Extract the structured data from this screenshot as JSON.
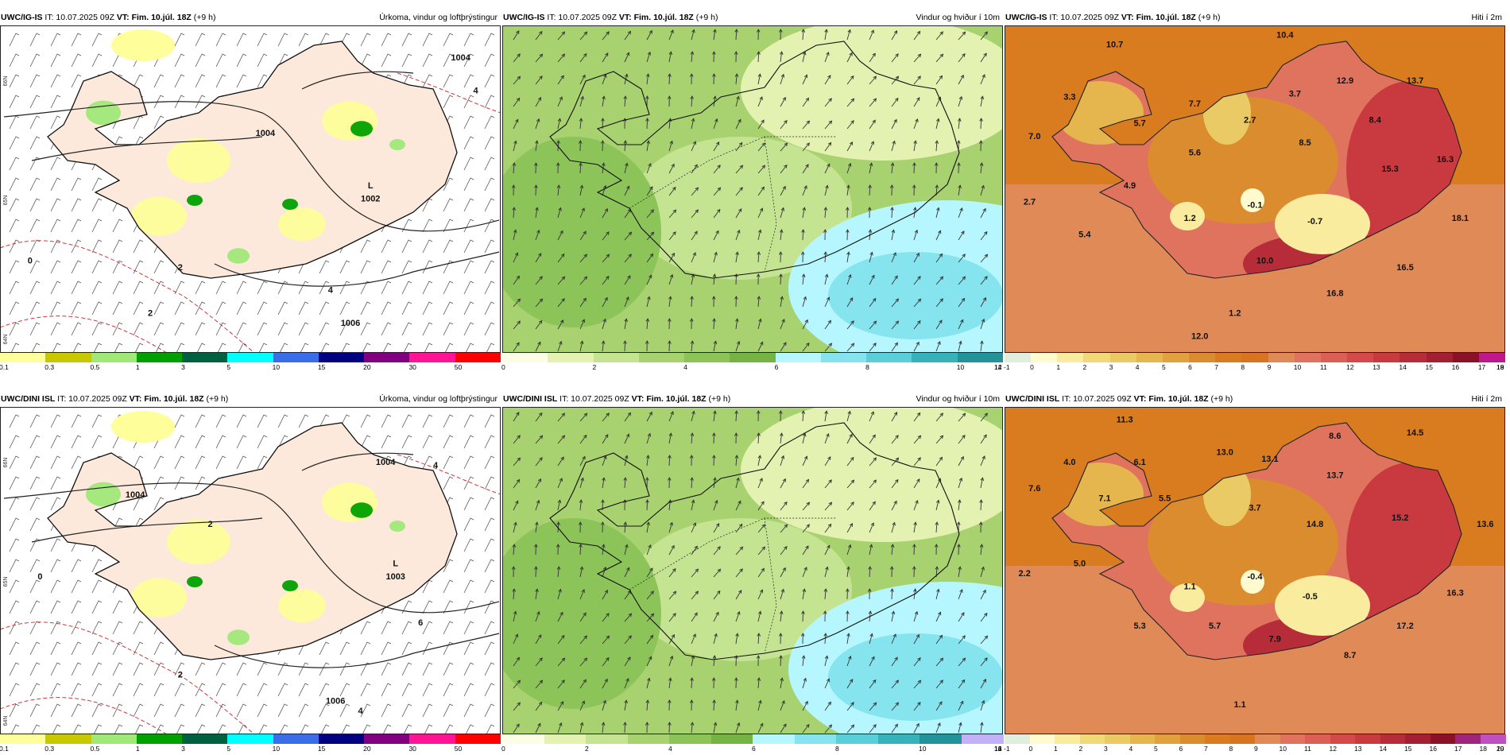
{
  "rows": [
    {
      "name": "ig-is",
      "panels": [
        {
          "kind": "precip",
          "model": "UWC/IG-IS",
          "it": " IT: 10.07.2025 09Z ",
          "vt_label": "VT: Fim. 10.júl. 18Z",
          "offset": " (+9 h)",
          "title": "Úrkoma, vindur og loftþrýstingur",
          "lat_labels": [
            "66N",
            "65N",
            "64N"
          ],
          "values": [
            {
              "text": "1004",
              "x": 0.92,
              "y": 0.1
            },
            {
              "text": "1004",
              "x": 0.53,
              "y": 0.33
            },
            {
              "text": "L",
              "x": 0.74,
              "y": 0.49
            },
            {
              "text": "1002",
              "x": 0.74,
              "y": 0.53
            },
            {
              "text": "1006",
              "x": 0.7,
              "y": 0.91
            },
            {
              "text": "4",
              "x": 0.95,
              "y": 0.2
            },
            {
              "text": "2",
              "x": 0.36,
              "y": 0.74
            },
            {
              "text": "0",
              "x": 0.06,
              "y": 0.72
            },
            {
              "text": "2",
              "x": 0.3,
              "y": 0.88
            },
            {
              "text": "4",
              "x": 0.66,
              "y": 0.81
            }
          ],
          "legend": {
            "colors": [
              "#fefe9a",
              "#c8c800",
              "#a0e878",
              "#00a000",
              "#006040",
              "#00ffff",
              "#3a6ee8",
              "#000080",
              "#800080",
              "#ff1493",
              "#ff0000"
            ],
            "ticks": [
              "0.1",
              "0.3",
              "0.5",
              "1",
              "3",
              "5",
              "10",
              "15",
              "20",
              "30",
              "50"
            ]
          }
        },
        {
          "kind": "wind",
          "model": "UWC/IG-IS",
          "it": " IT: 10.07.2025 09Z ",
          "vt_label": "VT: Fim. 10.júl. 18Z",
          "offset": " (+9 h)",
          "title": "Vindur og hviður í 10m",
          "values": [],
          "legend": {
            "colors": [
              "#fbfde6",
              "#e3f2b0",
              "#c5e491",
              "#a8d16f",
              "#8cc45a",
              "#76b244",
              "#b6f7ff",
              "#86e4ef",
              "#5acfd8",
              "#35b3b8",
              "#219399"
            ],
            "ticks": [
              "0",
              "2",
              "4",
              "6",
              "8",
              "10",
              "12",
              "14"
            ]
          }
        },
        {
          "kind": "temp",
          "model": "UWC/IG-IS",
          "it": " IT: 10.07.2025 09Z ",
          "vt_label": "VT: Fim. 10.júl. 18Z",
          "offset": " (+9 h)",
          "title": "Hiti í 2m",
          "values": [
            {
              "text": "10.4",
              "x": 0.56,
              "y": 0.03
            },
            {
              "text": "10.7",
              "x": 0.22,
              "y": 0.06
            },
            {
              "text": "12.9",
              "x": 0.68,
              "y": 0.17
            },
            {
              "text": "13.7",
              "x": 0.82,
              "y": 0.17
            },
            {
              "text": "3.3",
              "x": 0.13,
              "y": 0.22
            },
            {
              "text": "7.7",
              "x": 0.38,
              "y": 0.24
            },
            {
              "text": "3.7",
              "x": 0.58,
              "y": 0.21
            },
            {
              "text": "5.7",
              "x": 0.27,
              "y": 0.3
            },
            {
              "text": "2.7",
              "x": 0.49,
              "y": 0.29
            },
            {
              "text": "8.4",
              "x": 0.74,
              "y": 0.29
            },
            {
              "text": "7.0",
              "x": 0.06,
              "y": 0.34
            },
            {
              "text": "8.5",
              "x": 0.6,
              "y": 0.36
            },
            {
              "text": "5.6",
              "x": 0.38,
              "y": 0.39
            },
            {
              "text": "16.3",
              "x": 0.88,
              "y": 0.41
            },
            {
              "text": "15.3",
              "x": 0.77,
              "y": 0.44
            },
            {
              "text": "4.9",
              "x": 0.25,
              "y": 0.49
            },
            {
              "text": "2.7",
              "x": 0.05,
              "y": 0.54
            },
            {
              "text": "-0.1",
              "x": 0.5,
              "y": 0.55
            },
            {
              "text": "1.2",
              "x": 0.37,
              "y": 0.59
            },
            {
              "text": "18.1",
              "x": 0.91,
              "y": 0.59
            },
            {
              "text": "-0.7",
              "x": 0.62,
              "y": 0.6
            },
            {
              "text": "5.4",
              "x": 0.16,
              "y": 0.64
            },
            {
              "text": "10.0",
              "x": 0.52,
              "y": 0.72
            },
            {
              "text": "16.5",
              "x": 0.8,
              "y": 0.74
            },
            {
              "text": "16.8",
              "x": 0.66,
              "y": 0.82
            },
            {
              "text": "1.2",
              "x": 0.46,
              "y": 0.88
            },
            {
              "text": "12.0",
              "x": 0.39,
              "y": 0.95
            }
          ],
          "legend": {
            "colors": [
              "#dfeedd",
              "#fffbcf",
              "#f9ec9e",
              "#f1d97a",
              "#eaca64",
              "#e4b64d",
              "#e1a23d",
              "#da8c2f",
              "#d97b1f",
              "#d8741f",
              "#e08a58",
              "#df735e",
              "#dc5f55",
              "#d44a4a",
              "#c83a3f",
              "#b62c38",
              "#a31f32",
              "#8b1127",
              "#c0188c"
            ],
            "ticks": [
              "-1",
              "0",
              "1",
              "2",
              "3",
              "4",
              "5",
              "6",
              "7",
              "8",
              "9",
              "10",
              "11",
              "12",
              "13",
              "14",
              "15",
              "16",
              "17",
              "18",
              "19"
            ]
          }
        }
      ]
    },
    {
      "name": "dini-isl",
      "panels": [
        {
          "kind": "precip",
          "model": "UWC/DINI ISL",
          "it": " IT: 10.07.2025 09Z ",
          "vt_label": "VT: Fim. 10.júl. 18Z",
          "offset": " (+9 h)",
          "title": "Úrkoma, vindur og loftþrýstingur",
          "lat_labels": [
            "66N",
            "65N",
            "64N"
          ],
          "values": [
            {
              "text": "1004",
              "x": 0.77,
              "y": 0.17
            },
            {
              "text": "1004",
              "x": 0.27,
              "y": 0.27
            },
            {
              "text": "L",
              "x": 0.79,
              "y": 0.48
            },
            {
              "text": "1003",
              "x": 0.79,
              "y": 0.52
            },
            {
              "text": "1006",
              "x": 0.67,
              "y": 0.9
            },
            {
              "text": "4",
              "x": 0.87,
              "y": 0.18
            },
            {
              "text": "2",
              "x": 0.42,
              "y": 0.36
            },
            {
              "text": "0",
              "x": 0.08,
              "y": 0.52
            },
            {
              "text": "2",
              "x": 0.36,
              "y": 0.82
            },
            {
              "text": "4",
              "x": 0.72,
              "y": 0.93
            },
            {
              "text": "6",
              "x": 0.84,
              "y": 0.66
            }
          ],
          "legend": {
            "colors": [
              "#fefe9a",
              "#c8c800",
              "#a0e878",
              "#00a000",
              "#006040",
              "#00ffff",
              "#3a6ee8",
              "#000080",
              "#800080",
              "#ff1493",
              "#ff0000"
            ],
            "ticks": [
              "0.1",
              "0.3",
              "0.5",
              "1",
              "3",
              "5",
              "10",
              "15",
              "20",
              "30",
              "50"
            ]
          }
        },
        {
          "kind": "wind",
          "model": "UWC/DINI ISL",
          "it": " IT: 10.07.2025 09Z ",
          "vt_label": "VT: Fim. 10.júl. 18Z",
          "offset": " (+9 h)",
          "title": "Vindur og hviður í 10m",
          "values": [],
          "legend": {
            "colors": [
              "#fbfde6",
              "#e3f2b0",
              "#c5e491",
              "#a8d16f",
              "#8cc45a",
              "#76b244",
              "#b6f7ff",
              "#86e4ef",
              "#5acfd8",
              "#35b3b8",
              "#219399",
              "#c4b0f4"
            ],
            "ticks": [
              "0",
              "2",
              "4",
              "6",
              "8",
              "10",
              "12",
              "14",
              "16"
            ]
          }
        },
        {
          "kind": "temp",
          "model": "UWC/DINI ISL",
          "it": " IT: 10.07.2025 09Z ",
          "vt_label": "VT: Fim. 10.júl. 18Z",
          "offset": " (+9 h)",
          "title": "Hiti í 2m",
          "values": [
            {
              "text": "11.3",
              "x": 0.24,
              "y": 0.04
            },
            {
              "text": "14.5",
              "x": 0.82,
              "y": 0.08
            },
            {
              "text": "8.6",
              "x": 0.66,
              "y": 0.09
            },
            {
              "text": "13.0",
              "x": 0.44,
              "y": 0.14
            },
            {
              "text": "4.0",
              "x": 0.13,
              "y": 0.17
            },
            {
              "text": "6.1",
              "x": 0.27,
              "y": 0.17
            },
            {
              "text": "13.1",
              "x": 0.53,
              "y": 0.16
            },
            {
              "text": "13.7",
              "x": 0.66,
              "y": 0.21
            },
            {
              "text": "7.6",
              "x": 0.06,
              "y": 0.25
            },
            {
              "text": "7.1",
              "x": 0.2,
              "y": 0.28
            },
            {
              "text": "5.5",
              "x": 0.32,
              "y": 0.28
            },
            {
              "text": "3.7",
              "x": 0.5,
              "y": 0.31
            },
            {
              "text": "15.2",
              "x": 0.79,
              "y": 0.34
            },
            {
              "text": "14.8",
              "x": 0.62,
              "y": 0.36
            },
            {
              "text": "13.6",
              "x": 0.96,
              "y": 0.36
            },
            {
              "text": "5.0",
              "x": 0.15,
              "y": 0.48
            },
            {
              "text": "2.2",
              "x": 0.04,
              "y": 0.51
            },
            {
              "text": "-0.4",
              "x": 0.5,
              "y": 0.52
            },
            {
              "text": "1.1",
              "x": 0.37,
              "y": 0.55
            },
            {
              "text": "16.3",
              "x": 0.9,
              "y": 0.57
            },
            {
              "text": "-0.5",
              "x": 0.61,
              "y": 0.58
            },
            {
              "text": "5.3",
              "x": 0.27,
              "y": 0.67
            },
            {
              "text": "5.7",
              "x": 0.42,
              "y": 0.67
            },
            {
              "text": "17.2",
              "x": 0.8,
              "y": 0.67
            },
            {
              "text": "7.9",
              "x": 0.54,
              "y": 0.71
            },
            {
              "text": "8.7",
              "x": 0.69,
              "y": 0.76
            },
            {
              "text": "1.1",
              "x": 0.47,
              "y": 0.91
            }
          ],
          "legend": {
            "colors": [
              "#dfeedd",
              "#fffbcf",
              "#f9ec9e",
              "#f1d97a",
              "#eaca64",
              "#e4b64d",
              "#e1a23d",
              "#da8c2f",
              "#d97b1f",
              "#d8741f",
              "#e08a58",
              "#df735e",
              "#dc5f55",
              "#d44a4a",
              "#c83a3f",
              "#b62c38",
              "#a31f32",
              "#8b1127",
              "#9d257a",
              "#c04fbf"
            ],
            "ticks": [
              "-1",
              "0",
              "1",
              "2",
              "3",
              "4",
              "5",
              "6",
              "7",
              "8",
              "9",
              "10",
              "11",
              "12",
              "13",
              "14",
              "15",
              "16",
              "17",
              "18",
              "19",
              "20"
            ]
          }
        }
      ]
    }
  ]
}
